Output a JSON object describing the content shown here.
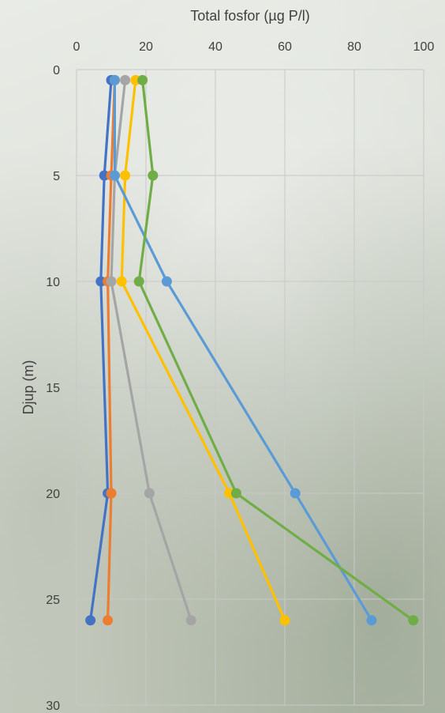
{
  "chart_data": {
    "type": "line",
    "title": "",
    "xlabel": "Total fosfor (µg P/l)",
    "ylabel": "Djup (m)",
    "xlim": [
      0,
      100
    ],
    "ylim": [
      0,
      30
    ],
    "y_inverted": true,
    "x_axis_position": "top",
    "grid": true,
    "x_ticks": [
      0,
      20,
      40,
      60,
      80,
      100
    ],
    "y_ticks": [
      0,
      5,
      10,
      15,
      20,
      25,
      30
    ],
    "x_tick_labels": [
      "0",
      "20",
      "40",
      "60",
      "80",
      "100"
    ],
    "y_tick_labels": [
      "0",
      "5",
      "10",
      "15",
      "20",
      "25",
      "30"
    ],
    "series": [
      {
        "color": "#4472c4",
        "points": [
          [
            10,
            0.5
          ],
          [
            8,
            5
          ],
          [
            7,
            10
          ],
          [
            9,
            20
          ],
          [
            4,
            26
          ]
        ]
      },
      {
        "color": "#ed7d31",
        "points": [
          [
            11,
            0.5
          ],
          [
            10,
            5
          ],
          [
            9,
            10
          ],
          [
            10,
            20
          ],
          [
            9,
            26
          ]
        ]
      },
      {
        "color": "#a5a5a5",
        "points": [
          [
            14,
            0.5
          ],
          [
            11,
            5
          ],
          [
            10,
            10
          ],
          [
            21,
            20
          ],
          [
            33,
            26
          ]
        ]
      },
      {
        "color": "#ffc000",
        "points": [
          [
            17,
            0.5
          ],
          [
            14,
            5
          ],
          [
            13,
            10
          ],
          [
            44,
            20
          ],
          [
            60,
            26
          ]
        ]
      },
      {
        "color": "#5b9bd5",
        "points": [
          [
            11,
            0.5
          ],
          [
            11,
            5
          ],
          [
            26,
            10
          ],
          [
            63,
            20
          ],
          [
            85,
            26
          ]
        ]
      },
      {
        "color": "#70ad47",
        "points": [
          [
            19,
            0.5
          ],
          [
            22,
            5
          ],
          [
            18,
            10
          ],
          [
            46,
            20
          ],
          [
            97,
            26
          ]
        ]
      }
    ]
  }
}
